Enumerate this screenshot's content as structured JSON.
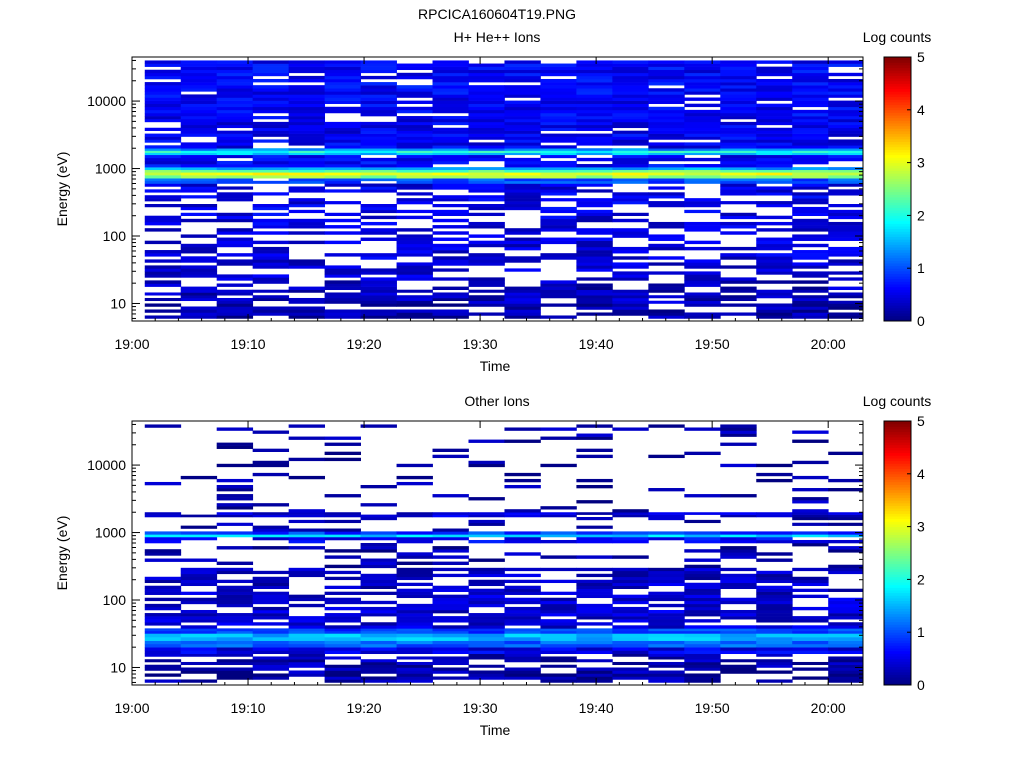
{
  "figure": {
    "title": "RPCICA160604T19.PNG"
  },
  "colors": {
    "colormap": [
      "#00007f",
      "#0000ff",
      "#007fff",
      "#00ffff",
      "#7fff7f",
      "#ffff00",
      "#ff7f00",
      "#ff0000",
      "#7f0000"
    ],
    "empty": "#ffffff",
    "axis": "#000000"
  },
  "chart_data": [
    {
      "type": "heatmap",
      "title": "H+ He++ Ions",
      "xlabel": "Time",
      "ylabel": "Energy (eV)",
      "x_range_minutes": [
        0,
        63
      ],
      "x_ticks": [
        {
          "min": 0,
          "label": "19:00"
        },
        {
          "min": 10,
          "label": "19:10"
        },
        {
          "min": 20,
          "label": "19:20"
        },
        {
          "min": 30,
          "label": "19:30"
        },
        {
          "min": 40,
          "label": "19:40"
        },
        {
          "min": 50,
          "label": "19:50"
        },
        {
          "min": 60,
          "label": "20:00"
        }
      ],
      "y_scale": "log",
      "y_range": [
        5.5,
        45000
      ],
      "y_ticks": [
        {
          "value": 10,
          "label": "10"
        },
        {
          "value": 100,
          "label": "100"
        },
        {
          "value": 1000,
          "label": "1000"
        },
        {
          "value": 10000,
          "label": "10000"
        }
      ],
      "colorbar": {
        "label": "Log counts",
        "range": [
          0,
          5
        ],
        "ticks": [
          "0",
          "1",
          "2",
          "3",
          "4",
          "5"
        ]
      },
      "time_bins": 20,
      "time_start_min": 1.1,
      "time_step_min": 3.1,
      "energy_bands": [
        {
          "e_min": 6,
          "e_max": 10,
          "base": 0.2,
          "fill": 0.75
        },
        {
          "e_min": 10,
          "e_max": 16,
          "base": 0.3,
          "fill": 0.7
        },
        {
          "e_min": 16,
          "e_max": 22,
          "base": 0.3,
          "fill": 0.55
        },
        {
          "e_min": 22,
          "e_max": 45,
          "base": 0.4,
          "fill": 0.55
        },
        {
          "e_min": 45,
          "e_max": 200,
          "base": 0.45,
          "fill": 0.6
        },
        {
          "e_min": 200,
          "e_max": 600,
          "base": 0.5,
          "fill": 0.6
        },
        {
          "e_min": 600,
          "e_max": 720,
          "base": 1.0,
          "fill": 0.9
        },
        {
          "e_min": 720,
          "e_max": 800,
          "base": 2.6,
          "fill": 1.0
        },
        {
          "e_min": 800,
          "e_max": 880,
          "base": 3.0,
          "fill": 1.0
        },
        {
          "e_min": 880,
          "e_max": 960,
          "base": 2.4,
          "fill": 1.0
        },
        {
          "e_min": 960,
          "e_max": 1050,
          "base": 1.4,
          "fill": 1.0
        },
        {
          "e_min": 1050,
          "e_max": 1600,
          "base": 0.6,
          "fill": 0.8
        },
        {
          "e_min": 1600,
          "e_max": 1720,
          "base": 1.6,
          "fill": 1.0
        },
        {
          "e_min": 1720,
          "e_max": 1850,
          "base": 2.0,
          "fill": 1.0
        },
        {
          "e_min": 1850,
          "e_max": 2000,
          "base": 1.3,
          "fill": 1.0
        },
        {
          "e_min": 2000,
          "e_max": 6000,
          "base": 0.55,
          "fill": 0.85
        },
        {
          "e_min": 6000,
          "e_max": 40000,
          "base": 0.6,
          "fill": 0.88
        }
      ]
    },
    {
      "type": "heatmap",
      "title": "Other Ions",
      "xlabel": "Time",
      "ylabel": "Energy (eV)",
      "x_range_minutes": [
        0,
        63
      ],
      "x_ticks": [
        {
          "min": 0,
          "label": "19:00"
        },
        {
          "min": 10,
          "label": "19:10"
        },
        {
          "min": 20,
          "label": "19:20"
        },
        {
          "min": 30,
          "label": "19:30"
        },
        {
          "min": 40,
          "label": "19:40"
        },
        {
          "min": 50,
          "label": "19:50"
        },
        {
          "min": 60,
          "label": "20:00"
        }
      ],
      "y_scale": "log",
      "y_range": [
        5.5,
        45000
      ],
      "y_ticks": [
        {
          "value": 10,
          "label": "10"
        },
        {
          "value": 100,
          "label": "100"
        },
        {
          "value": 1000,
          "label": "1000"
        },
        {
          "value": 10000,
          "label": "10000"
        }
      ],
      "colorbar": {
        "label": "Log counts",
        "range": [
          0,
          5
        ],
        "ticks": [
          "0",
          "1",
          "2",
          "3",
          "4",
          "5"
        ]
      },
      "time_bins": 20,
      "time_start_min": 1.1,
      "time_step_min": 3.1,
      "energy_bands": [
        {
          "e_min": 6,
          "e_max": 10,
          "base": 0.2,
          "fill": 0.7
        },
        {
          "e_min": 10,
          "e_max": 16,
          "base": 0.25,
          "fill": 0.65
        },
        {
          "e_min": 16,
          "e_max": 20,
          "base": 0.5,
          "fill": 1.0
        },
        {
          "e_min": 20,
          "e_max": 25,
          "base": 1.1,
          "fill": 1.0
        },
        {
          "e_min": 25,
          "e_max": 32,
          "base": 1.5,
          "fill": 1.0
        },
        {
          "e_min": 32,
          "e_max": 38,
          "base": 0.9,
          "fill": 1.0
        },
        {
          "e_min": 38,
          "e_max": 120,
          "base": 0.4,
          "fill": 0.75
        },
        {
          "e_min": 120,
          "e_max": 300,
          "base": 0.35,
          "fill": 0.6
        },
        {
          "e_min": 300,
          "e_max": 700,
          "base": 0.2,
          "fill": 0.3
        },
        {
          "e_min": 700,
          "e_max": 860,
          "base": 0.6,
          "fill": 0.7
        },
        {
          "e_min": 860,
          "e_max": 940,
          "base": 1.7,
          "fill": 1.0
        },
        {
          "e_min": 940,
          "e_max": 1040,
          "base": 0.9,
          "fill": 1.0
        },
        {
          "e_min": 1040,
          "e_max": 1700,
          "base": 0.2,
          "fill": 0.2
        },
        {
          "e_min": 1700,
          "e_max": 2000,
          "base": 0.4,
          "fill": 0.9
        },
        {
          "e_min": 2000,
          "e_max": 40000,
          "base": 0.2,
          "fill": 0.18
        }
      ]
    }
  ]
}
